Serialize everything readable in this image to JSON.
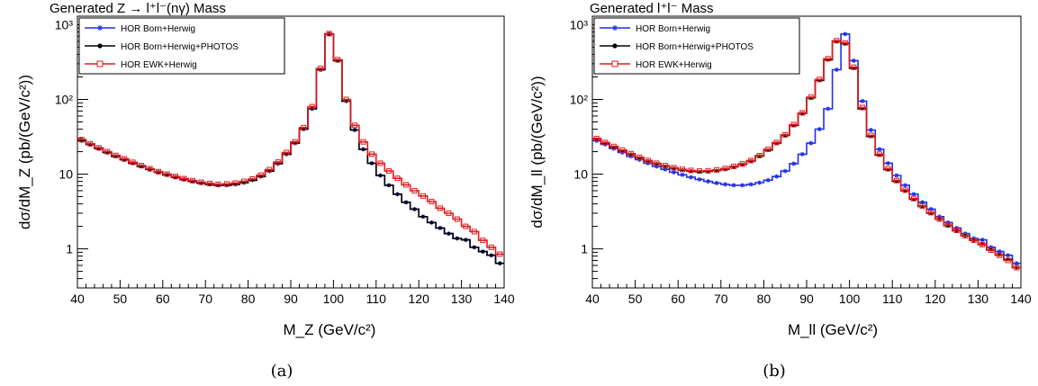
{
  "chart_data": [
    {
      "type": "line",
      "panel_label": "(a)",
      "title": "Generated Z → l⁺l⁻(nγ) Mass",
      "xlabel": "M_Z (GeV/c²)",
      "ylabel": "dσ/dM_Z (pb/(GeV/c²))",
      "xlim": [
        40,
        140
      ],
      "ylim": [
        0.3,
        1300
      ],
      "yscale": "log",
      "x_ticks": [
        "40",
        "50",
        "60",
        "70",
        "80",
        "90",
        "100",
        "110",
        "120",
        "130",
        "140"
      ],
      "y_ticks": [
        {
          "value": 1,
          "label": "1"
        },
        {
          "value": 10,
          "label": "10"
        },
        {
          "value": 100,
          "label": "10²"
        },
        {
          "value": 1000,
          "label": "10³"
        }
      ],
      "legend_position": "top-left",
      "binning": {
        "start": 40,
        "width": 2,
        "count": 50
      },
      "series": [
        {
          "name": "HOR Born+Herwig",
          "color": "#1f2ee6",
          "marker": "star",
          "values": [
            28,
            25,
            22,
            19.5,
            17.3,
            15.6,
            14,
            12.7,
            11.6,
            10.6,
            9.8,
            9.1,
            8.5,
            8,
            7.6,
            7.3,
            7.1,
            7.1,
            7.3,
            7.7,
            8.3,
            9.3,
            11,
            13.8,
            18.5,
            26,
            40,
            75,
            250,
            750,
            330,
            95,
            39,
            21.5,
            14,
            9.6,
            7.1,
            5.4,
            4.2,
            3.4,
            2.7,
            2.25,
            1.9,
            1.6,
            1.38,
            1.32,
            1.05,
            0.92,
            0.82,
            0.64
          ]
        },
        {
          "name": "HOR Born+Herwig+PHOTOS",
          "color": "#000000",
          "marker": "dot",
          "values": [
            28,
            25,
            22,
            19.5,
            17.3,
            15.6,
            14,
            12.7,
            11.6,
            10.6,
            9.8,
            9.1,
            8.5,
            8,
            7.6,
            7.3,
            7.1,
            7.1,
            7.3,
            7.7,
            8.3,
            9.3,
            11,
            13.8,
            18.5,
            26,
            40,
            75,
            250,
            750,
            330,
            95,
            39,
            21.5,
            14,
            9.6,
            7.1,
            5.4,
            4.2,
            3.4,
            2.7,
            2.25,
            1.9,
            1.6,
            1.38,
            1.32,
            1.05,
            0.92,
            0.82,
            0.64
          ]
        },
        {
          "name": "HOR EWK+Herwig",
          "color": "#e31a1c",
          "marker": "open-square",
          "values": [
            29,
            25.5,
            22.5,
            20,
            17.8,
            16,
            14.4,
            13,
            11.8,
            10.8,
            10,
            9.3,
            8.7,
            8.2,
            7.8,
            7.5,
            7.3,
            7.4,
            7.6,
            8,
            8.6,
            9.7,
            11.5,
            14.5,
            19.5,
            27,
            42,
            80,
            260,
            760,
            340,
            100,
            45,
            27,
            18.5,
            14,
            11,
            8.8,
            7.2,
            6,
            5.1,
            4.3,
            3.5,
            3,
            2.5,
            2,
            1.7,
            1.3,
            1.05,
            0.85
          ]
        }
      ]
    },
    {
      "type": "line",
      "panel_label": "(b)",
      "title": "Generated l⁺l⁻ Mass",
      "xlabel": "M_ll (GeV/c²)",
      "ylabel": "dσ/dM_ll (pb/(GeV/c²))",
      "xlim": [
        40,
        140
      ],
      "ylim": [
        0.3,
        1300
      ],
      "yscale": "log",
      "x_ticks": [
        "40",
        "50",
        "60",
        "70",
        "80",
        "90",
        "100",
        "110",
        "120",
        "130",
        "140"
      ],
      "y_ticks": [
        {
          "value": 1,
          "label": "1"
        },
        {
          "value": 10,
          "label": "10"
        },
        {
          "value": 100,
          "label": "10²"
        },
        {
          "value": 1000,
          "label": "10³"
        }
      ],
      "legend_position": "top-left",
      "binning": {
        "start": 40,
        "width": 2,
        "count": 50
      },
      "series": [
        {
          "name": "HOR Born+Herwig",
          "color": "#1f2ee6",
          "marker": "star",
          "values": [
            28,
            25,
            22,
            19.5,
            17.3,
            15.6,
            14,
            12.7,
            11.6,
            10.6,
            9.8,
            9.1,
            8.5,
            8,
            7.6,
            7.3,
            7.1,
            7.1,
            7.3,
            7.7,
            8.3,
            9.3,
            11,
            13.8,
            18.5,
            26,
            40,
            75,
            250,
            750,
            330,
            95,
            39,
            21.5,
            14,
            9.6,
            7.1,
            5.4,
            4.2,
            3.4,
            2.7,
            2.25,
            1.9,
            1.6,
            1.38,
            1.32,
            1.05,
            0.92,
            0.82,
            0.64
          ]
        },
        {
          "name": "HOR Born+Herwig+PHOTOS",
          "color": "#000000",
          "marker": "dot",
          "values": [
            29.5,
            26,
            23,
            20.5,
            18.5,
            16.5,
            15,
            13.8,
            12.8,
            12,
            11.4,
            11,
            10.8,
            10.9,
            11.2,
            11.7,
            12.5,
            13.5,
            15,
            17.5,
            21,
            26,
            33,
            45,
            65,
            105,
            180,
            340,
            600,
            560,
            260,
            75,
            32,
            18,
            11.5,
            8,
            6,
            4.6,
            3.7,
            3,
            2.5,
            2.05,
            1.75,
            1.5,
            1.3,
            1.15,
            0.97,
            0.83,
            0.72,
            0.56
          ]
        },
        {
          "name": "HOR EWK+Herwig",
          "color": "#e31a1c",
          "marker": "open-square",
          "values": [
            30,
            26.5,
            23.5,
            21,
            18.8,
            16.8,
            15.2,
            14,
            13,
            12.2,
            11.6,
            11.2,
            11,
            11.1,
            11.4,
            11.9,
            12.7,
            13.7,
            15.2,
            17.7,
            21.5,
            26.5,
            33.5,
            46,
            66,
            107,
            185,
            350,
            610,
            570,
            270,
            78,
            33,
            18.5,
            11.8,
            8.2,
            6.1,
            4.7,
            3.75,
            3.05,
            2.5,
            2.08,
            1.77,
            1.5,
            1.3,
            1.14,
            0.96,
            0.82,
            0.7,
            0.56
          ]
        }
      ]
    }
  ]
}
